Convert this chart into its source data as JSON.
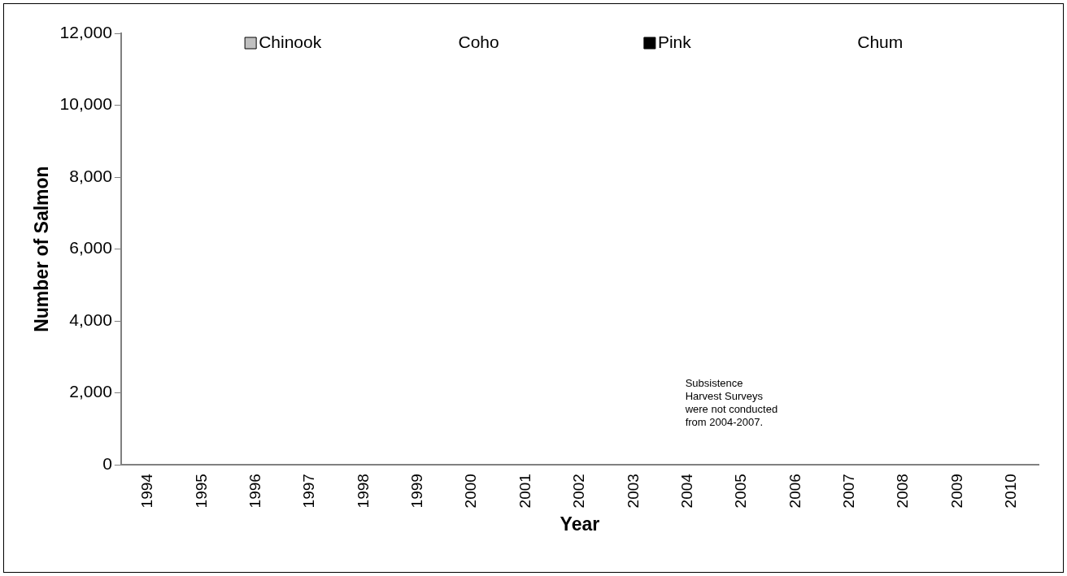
{
  "chart_data": {
    "type": "bar",
    "xlabel": "Year",
    "ylabel": "Number of Salmon",
    "categories": [
      "1994",
      "1995",
      "1996",
      "1997",
      "1998",
      "1999",
      "2000",
      "2001",
      "2002",
      "2003",
      "2004",
      "2005",
      "2006",
      "2007",
      "2008",
      "2009",
      "2010"
    ],
    "series": [
      {
        "name": "Chinook",
        "color": "#c0c0c0",
        "values": [
          null,
          null,
          null,
          null,
          null,
          null,
          null,
          null,
          null,
          null,
          null,
          null,
          null,
          null,
          null,
          null,
          null
        ]
      },
      {
        "name": "Coho",
        "values": [
          null,
          null,
          null,
          null,
          null,
          null,
          null,
          null,
          null,
          null,
          null,
          null,
          null,
          null,
          null,
          null,
          null
        ]
      },
      {
        "name": "Pink",
        "color": "#000000",
        "values": [
          null,
          null,
          null,
          null,
          null,
          null,
          null,
          null,
          null,
          null,
          null,
          null,
          null,
          null,
          null,
          null,
          null
        ]
      },
      {
        "name": "Chum",
        "values": [
          null,
          null,
          null,
          null,
          null,
          null,
          null,
          null,
          null,
          null,
          null,
          null,
          null,
          null,
          null,
          null,
          null
        ]
      }
    ],
    "ylim": [
      0,
      12000
    ],
    "yticks": [
      0,
      {
        "value": 2000,
        "label": "2,000"
      },
      {
        "value": 4000,
        "label": "4,000"
      },
      {
        "value": 6000,
        "label": "6,000"
      },
      {
        "value": 8000,
        "label": "8,000"
      },
      {
        "value": 10000,
        "label": "10,000"
      },
      {
        "value": 12000,
        "label": "12,000"
      }
    ],
    "grid": false,
    "legend": "top",
    "annotations": [
      "Subsistence\nHarvest Surveys\nwere not conducted\nfrom 2004-2007."
    ]
  }
}
